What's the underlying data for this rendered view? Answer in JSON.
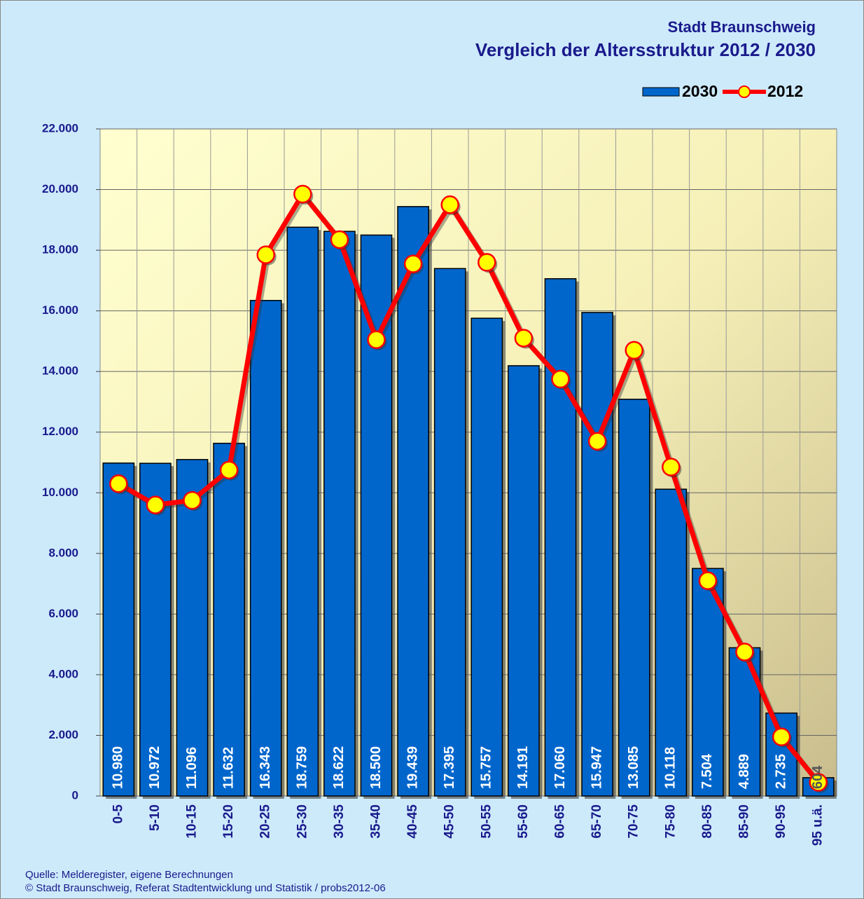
{
  "chart_data": {
    "type": "bar",
    "title": "Stadt Braunschweig",
    "subtitle": "Vergleich der Altersstruktur 2012 / 2030",
    "source": [
      "Quelle: Melderegister, eigene Berechnungen",
      "© Stadt Braunschweig, Referat Stadtentwicklung und Statistik / probs2012-06"
    ],
    "categories": [
      "0-5",
      "5-10",
      "10-15",
      "15-20",
      "20-25",
      "25-30",
      "30-35",
      "35-40",
      "40-45",
      "45-50",
      "50-55",
      "55-60",
      "60-65",
      "65-70",
      "70-75",
      "75-80",
      "80-85",
      "85-90",
      "90-95",
      "95 u.ä."
    ],
    "series": [
      {
        "name": "2030",
        "type": "bar",
        "color": "#0066cc",
        "values": [
          10980,
          10972,
          11096,
          11632,
          16343,
          18759,
          18622,
          18500,
          19439,
          17395,
          15757,
          14191,
          17060,
          15947,
          13085,
          10118,
          7504,
          4889,
          2735,
          604
        ],
        "value_labels": [
          "10.980",
          "10.972",
          "11.096",
          "11.632",
          "16.343",
          "18.759",
          "18.622",
          "18.500",
          "19.439",
          "17.395",
          "15.757",
          "14.191",
          "17.060",
          "15.947",
          "13.085",
          "10.118",
          "7.504",
          "4.889",
          "2.735",
          "604"
        ]
      },
      {
        "name": "2012",
        "type": "line",
        "color": "#ff0000",
        "marker_color": "#ffff00",
        "values": [
          10300,
          9600,
          9750,
          10750,
          17850,
          19850,
          18350,
          15050,
          17550,
          19500,
          17600,
          15100,
          13750,
          11700,
          14700,
          10850,
          7100,
          4750,
          1950,
          450
        ]
      }
    ],
    "ylim": [
      0,
      22000
    ],
    "yticks": [
      0,
      {
        "value": 2000,
        "label": "2.000"
      },
      {
        "value": 4000,
        "label": "4.000"
      },
      {
        "value": 6000,
        "label": "6.000"
      },
      {
        "value": 8000,
        "label": "8.000"
      },
      {
        "value": 10000,
        "label": "10.000"
      },
      {
        "value": 12000,
        "label": "12.000"
      },
      {
        "value": 14000,
        "label": "14.000"
      },
      {
        "value": 16000,
        "label": "16.000"
      },
      {
        "value": 18000,
        "label": "18.000"
      },
      {
        "value": 20000,
        "label": "20.000"
      },
      {
        "value": 22000,
        "label": "22.000"
      }
    ],
    "grid": true,
    "legend": "top-right"
  }
}
